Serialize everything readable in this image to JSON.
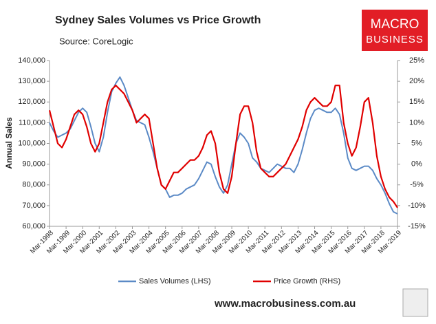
{
  "chart_data": {
    "type": "line",
    "title": "Sydney Sales Volumes vs Price Growth",
    "subtitle": "Source: CoreLogic",
    "y_label": "Annual Sales",
    "categories": [
      "Mar-1998",
      null,
      null,
      null,
      "Mar-1999",
      null,
      null,
      null,
      "Mar-2000",
      null,
      null,
      null,
      "Mar-2001",
      null,
      null,
      null,
      "Mar-2002",
      null,
      null,
      null,
      "Mar-2003",
      null,
      null,
      null,
      "Mar-2004",
      null,
      null,
      null,
      "Mar-2005",
      null,
      null,
      null,
      "Mar-2006",
      null,
      null,
      null,
      "Mar-2007",
      null,
      null,
      null,
      "Mar-2008",
      null,
      null,
      null,
      "Mar-2009",
      null,
      null,
      null,
      "Mar-2010",
      null,
      null,
      null,
      "Mar-2011",
      null,
      null,
      null,
      "Mar-2012",
      null,
      null,
      null,
      "Mar-2013",
      null,
      null,
      null,
      "Mar-2014",
      null,
      null,
      null,
      "Mar-2015",
      null,
      null,
      null,
      "Mar-2016",
      null,
      null,
      null,
      "Mar-2017",
      null,
      null,
      null,
      "Mar-2018",
      null,
      null,
      null,
      "Mar-2019"
    ],
    "series": [
      {
        "name": "Sales Volumes (LHS)",
        "color": "#5b8ac6",
        "axis": "y",
        "values": [
          110000,
          106000,
          103000,
          104000,
          105000,
          107000,
          111000,
          115000,
          117000,
          115000,
          108000,
          100000,
          96000,
          103000,
          115000,
          125000,
          129000,
          132000,
          128000,
          122000,
          116000,
          111000,
          110000,
          109000,
          103000,
          96000,
          88000,
          80000,
          78000,
          74000,
          75000,
          75000,
          76000,
          78000,
          79000,
          80000,
          83000,
          87000,
          91000,
          90000,
          84000,
          79000,
          76000,
          80000,
          90000,
          100000,
          105000,
          103000,
          100000,
          93000,
          91000,
          88000,
          87000,
          86000,
          88000,
          90000,
          89000,
          88000,
          88000,
          86000,
          90000,
          97000,
          105000,
          112000,
          116000,
          117000,
          116000,
          115000,
          115000,
          117000,
          114000,
          105000,
          93000,
          88000,
          87000,
          88000,
          89000,
          89000,
          87000,
          83000,
          80000,
          76000,
          71000,
          67000,
          66000
        ]
      },
      {
        "name": "Price Growth (RHS)",
        "color": "#e00000",
        "axis": "y2",
        "values": [
          13,
          9,
          5,
          4,
          6,
          9,
          12,
          13,
          12,
          9,
          5,
          3,
          5,
          10,
          15,
          18,
          19,
          18,
          17,
          15,
          13,
          10,
          11,
          12,
          11,
          5,
          -1,
          -5,
          -6,
          -4,
          -2,
          -2,
          -1,
          0,
          1,
          1,
          2,
          4,
          7,
          8,
          5,
          -2,
          -6,
          -7,
          -3,
          5,
          12,
          14,
          14,
          10,
          3,
          -1,
          -2,
          -3,
          -3,
          -2,
          -1,
          0,
          2,
          4,
          6,
          9,
          13,
          15,
          16,
          15,
          14,
          14,
          15,
          19,
          19,
          10,
          5,
          2,
          4,
          9,
          15,
          16,
          10,
          2,
          -3,
          -6,
          -8,
          -9,
          -10.5
        ]
      }
    ],
    "ylim": [
      60000,
      140000
    ],
    "yticks": [
      {
        "value": 60000,
        "label": "60,000"
      },
      {
        "value": 70000,
        "label": "70,000"
      },
      {
        "value": 80000,
        "label": "80,000"
      },
      {
        "value": 90000,
        "label": "90,000"
      },
      {
        "value": 100000,
        "label": "100,000"
      },
      {
        "value": 110000,
        "label": "110,000"
      },
      {
        "value": 120000,
        "label": "120,000"
      },
      {
        "value": 130000,
        "label": "130,000"
      },
      {
        "value": 140000,
        "label": "140,000"
      }
    ],
    "y2lim": [
      -15,
      25
    ],
    "y2ticks": [
      {
        "value": -15,
        "label": "-15%"
      },
      {
        "value": -10,
        "label": "-10%"
      },
      {
        "value": -5,
        "label": "-5%"
      },
      {
        "value": 0,
        "label": "0%"
      },
      {
        "value": 5,
        "label": "5%"
      },
      {
        "value": 10,
        "label": "10%"
      },
      {
        "value": 15,
        "label": "15%"
      },
      {
        "value": 20,
        "label": "20%"
      },
      {
        "value": 25,
        "label": "25%"
      }
    ],
    "grid": false,
    "legend": "bottom"
  },
  "logo": {
    "line1": "MACRO",
    "line2": "BUSINESS"
  },
  "footer": "www.macrobusiness.com.au"
}
